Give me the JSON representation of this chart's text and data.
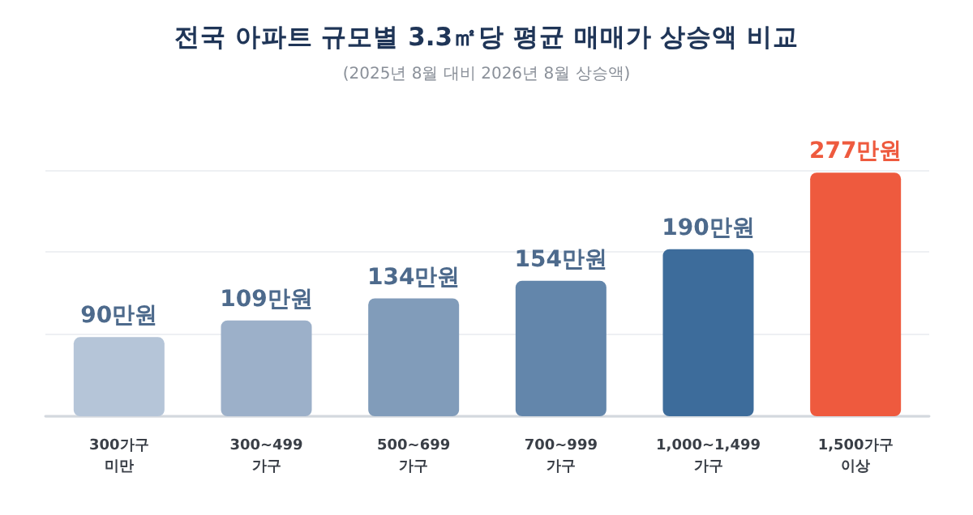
{
  "chart_data": {
    "type": "bar",
    "title": "전국 아파트 규모별 3.3㎡당 평균 매매가 상승액 비교",
    "subtitle": "(2025년 8월 대비 2026년 8월 상승액)",
    "categories": [
      "300가구\n미만",
      "300~499\n가구",
      "500~699\n가구",
      "700~999\n가구",
      "1,000~1,499\n가구",
      "1,500가구\n이상"
    ],
    "values": [
      90,
      109,
      134,
      154,
      190,
      277
    ],
    "value_labels": [
      "90만원",
      "109만원",
      "134만원",
      "154만원",
      "190만원",
      "277만원"
    ],
    "colors": [
      "#b5c5d8",
      "#9cb0c9",
      "#819cba",
      "#6386ab",
      "#3d6c9b",
      "#ee5a3e"
    ],
    "ylim": [
      0,
      280
    ],
    "yticks": [
      {
        "value": 0,
        "label": null
      },
      {
        "value": 93.3,
        "label": null
      },
      {
        "value": 186.7,
        "label": null
      },
      {
        "value": 280,
        "label": null
      }
    ],
    "grid": "y",
    "tick_labels": "x"
  }
}
